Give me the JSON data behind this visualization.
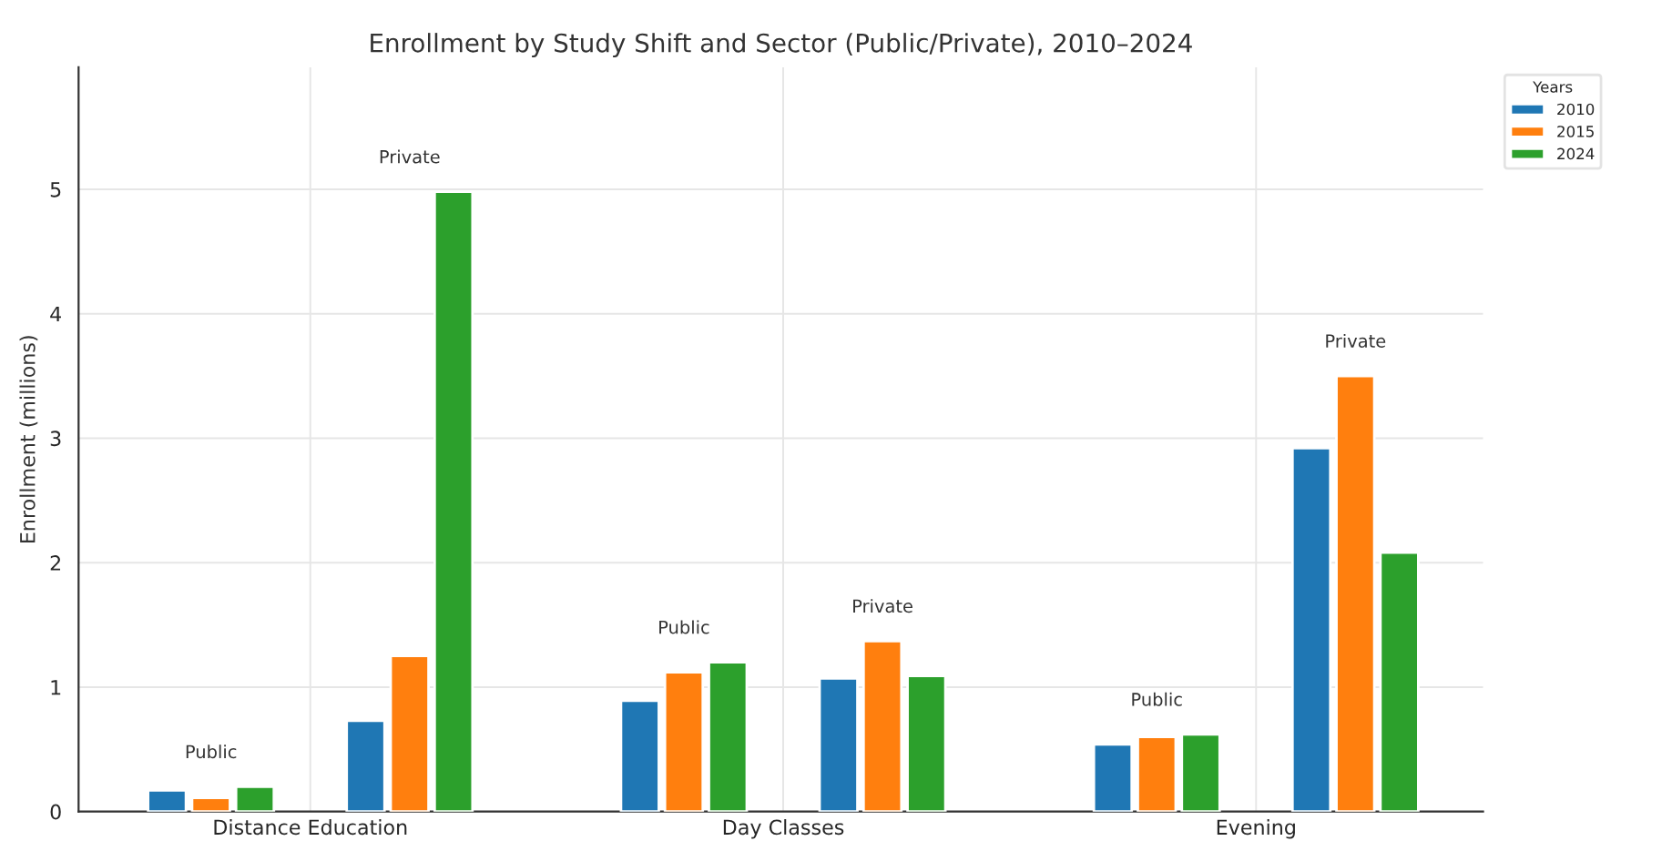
{
  "chart_data": {
    "type": "bar",
    "title": "Enrollment by Study Shift and Sector (Public/Private), 2010–2024",
    "ylabel": "Enrollment (millions)",
    "legend_title": "Years",
    "categories": [
      "Distance Education",
      "Day Classes",
      "Evening"
    ],
    "series": [
      {
        "name": "2010",
        "color": "#1f77b4",
        "values": [
          0.17,
          0.89,
          0.54
        ]
      },
      {
        "name": "2015",
        "color": "#ff7f0e",
        "values": [
          0.11,
          1.12,
          0.6
        ]
      },
      {
        "name": "2024",
        "color": "#2ca02c",
        "values": [
          0.2,
          1.2,
          0.62
        ]
      },
      {
        "color": "#1f77b4",
        "values": [
          0.73,
          1.07,
          2.92
        ]
      },
      {
        "color": "#ff7f0e",
        "values": [
          1.25,
          1.37,
          3.5
        ]
      },
      {
        "color": "#2ca02c",
        "values": [
          4.98,
          1.09,
          2.08
        ]
      }
    ],
    "annotations": [
      "Public",
      "Private",
      "Public",
      "Private",
      "Public",
      "Private"
    ],
    "ylim": [
      0,
      5.98
    ],
    "yticks": [
      0,
      1,
      2,
      3,
      4,
      5
    ],
    "grid": true,
    "legend": "top right"
  }
}
